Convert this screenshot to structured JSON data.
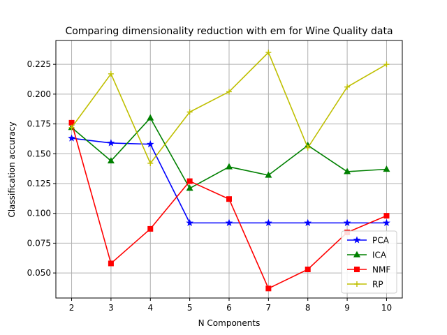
{
  "chart_data": {
    "type": "line",
    "title": "Comparing dimensionality reduction with em for Wine Quality data",
    "xlabel": "N Components",
    "ylabel": "Classification accuracy",
    "x": [
      2,
      3,
      4,
      5,
      6,
      7,
      8,
      9,
      10
    ],
    "xlim": [
      1.6,
      10.4
    ],
    "ylim": [
      0.029,
      0.245
    ],
    "xticks": [
      "2",
      "3",
      "4",
      "5",
      "6",
      "7",
      "8",
      "9",
      "10"
    ],
    "yticks": [
      "0.050",
      "0.075",
      "0.100",
      "0.125",
      "0.150",
      "0.175",
      "0.200",
      "0.225"
    ],
    "grid": true,
    "legend_position": "lower-right",
    "series": [
      {
        "name": "PCA",
        "color": "#0000ff",
        "marker": "star",
        "values": [
          0.163,
          0.159,
          0.158,
          0.092,
          0.092,
          0.092,
          0.092,
          0.092,
          0.092
        ]
      },
      {
        "name": "ICA",
        "color": "#008000",
        "marker": "triangle",
        "values": [
          0.172,
          0.144,
          0.18,
          0.121,
          0.139,
          0.132,
          0.157,
          0.135,
          0.137
        ]
      },
      {
        "name": "NMF",
        "color": "#ff0000",
        "marker": "square",
        "values": [
          0.176,
          0.058,
          0.087,
          0.127,
          0.112,
          0.037,
          0.053,
          0.084,
          0.098
        ]
      },
      {
        "name": "RP",
        "color": "#bfbf00",
        "marker": "plus",
        "values": [
          0.172,
          0.217,
          0.142,
          0.185,
          0.202,
          0.235,
          0.155,
          0.206,
          0.225
        ]
      }
    ]
  }
}
